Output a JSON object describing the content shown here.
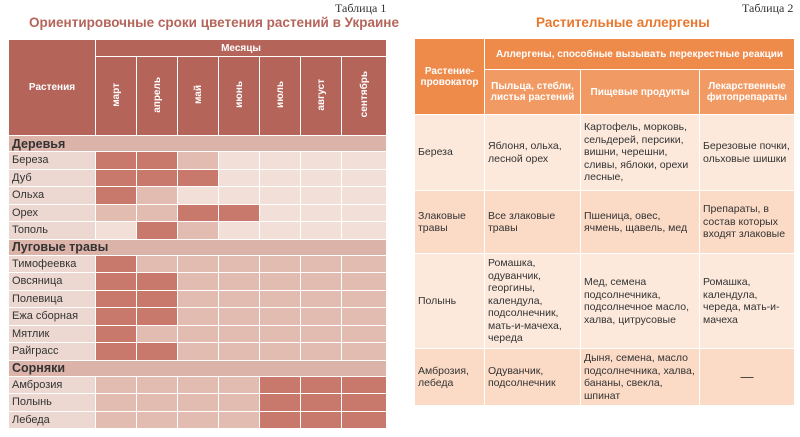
{
  "table1": {
    "label": "Таблица 1",
    "title": "Ориентировочные сроки цветения растений в Украине",
    "header_plants": "Растения",
    "header_months": "Месяцы",
    "months": [
      "март",
      "апрель",
      "май",
      "июнь",
      "июль",
      "август",
      "сентябрь"
    ],
    "categories": [
      {
        "name": "Деревья",
        "rows": [
          {
            "plant": "Береза",
            "levels": [
              2,
              2,
              1,
              0,
              0,
              0,
              0
            ]
          },
          {
            "plant": "Дуб",
            "levels": [
              2,
              2,
              2,
              0,
              0,
              0,
              0
            ]
          },
          {
            "plant": "Ольха",
            "levels": [
              2,
              1,
              0,
              0,
              0,
              0,
              0
            ]
          },
          {
            "plant": "Орех",
            "levels": [
              1,
              1,
              2,
              2,
              0,
              0,
              0
            ]
          },
          {
            "plant": "Тополь",
            "levels": [
              0,
              2,
              1,
              0,
              0,
              0,
              0
            ]
          }
        ]
      },
      {
        "name": "Луговые травы",
        "rows": [
          {
            "plant": "Тимофеевка",
            "levels": [
              2,
              1,
              1,
              1,
              1,
              1,
              1
            ]
          },
          {
            "plant": "Овсяница",
            "levels": [
              2,
              2,
              1,
              1,
              1,
              1,
              1
            ]
          },
          {
            "plant": "Полевица",
            "levels": [
              2,
              2,
              1,
              1,
              1,
              1,
              1
            ]
          },
          {
            "plant": "Ежа сборная",
            "levels": [
              2,
              2,
              1,
              1,
              1,
              1,
              1
            ]
          },
          {
            "plant": "Мятлик",
            "levels": [
              2,
              1,
              1,
              1,
              1,
              1,
              1
            ]
          },
          {
            "plant": "Райграсс",
            "levels": [
              2,
              2,
              1,
              1,
              1,
              1,
              1
            ]
          }
        ]
      },
      {
        "name": "Сорняки",
        "rows": [
          {
            "plant": "Амброзия",
            "levels": [
              1,
              1,
              1,
              1,
              2,
              2,
              2
            ]
          },
          {
            "plant": "Полынь",
            "levels": [
              1,
              1,
              1,
              1,
              2,
              2,
              2
            ]
          },
          {
            "plant": "Лебеда",
            "levels": [
              1,
              1,
              1,
              1,
              2,
              2,
              2
            ]
          }
        ]
      }
    ]
  },
  "table2": {
    "label": "Таблица 2",
    "title": "Растительные аллергены",
    "header_provoker": "Растение-провокатор",
    "header_cross": "Аллергены, способные вызывать перекрестные реакции",
    "subheaders": [
      "Пыльца, стебли, листья растений",
      "Пищевые продукты",
      "Лекарственные фитопрепараты"
    ],
    "rows": [
      {
        "plant": "Береза",
        "pollen": "Яблоня, ольха, лесной орех",
        "food": "Картофель, морковь, сельдерей, персики, вишни, черешни, сливы, яблоки, орехи лесные,",
        "drugs": "Березовые почки, ольховые шишки"
      },
      {
        "plant": "Злаковые травы",
        "pollen": "Все злаковые травы",
        "food": "Пшеница, овес, ячмень, щавель, мед",
        "drugs": "Препараты, в состав которых входят злаковые"
      },
      {
        "plant": "Полынь",
        "pollen": "Ромашка, одуванчик, георгины, календула, подсолнечник, мать-и-мачеха, череда",
        "food": "Мед, семена подсолнечника, подсолнечное масло, халва, цитрусовые",
        "drugs": "Ромашка, календула, череда, мать-и-мачеха"
      },
      {
        "plant": "Амброзия, лебеда",
        "pollen": "Одуванчик, подсолнечник",
        "food": "Дыня, семена, масло подсолнечника, халва, бананы, свекла, шпинат",
        "drugs": "—"
      }
    ]
  },
  "colors": {
    "t1_header": "#b5645a",
    "t1_title": "#b5645a",
    "t1_level0": "#f1dfd8",
    "t1_level1": "#e2bcb0",
    "t1_level2": "#c9796b",
    "t2_header": "#ee8a4a",
    "t2_title": "#e8772e"
  }
}
